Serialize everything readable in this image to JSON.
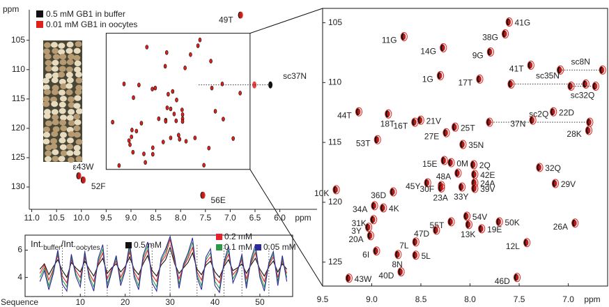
{
  "chart_data": [
    {
      "type": "nmr",
      "ylabel": "ppm",
      "xlabel": "ppm",
      "xlim": [
        11.05,
        5.25
      ],
      "ylim": [
        99.8,
        133.8
      ],
      "y_inverted": true,
      "xticks": [
        {
          "value": 11,
          "label": "11.0"
        },
        10.5,
        {
          "value": 10,
          "label": "10.0"
        },
        9.5,
        {
          "value": 9,
          "label": "9.0"
        },
        8.5,
        {
          "value": 8,
          "label": "8.0"
        },
        7.5,
        {
          "value": 7,
          "label": "7.0"
        },
        6.5,
        {
          "value": 6,
          "label": "6.0"
        }
      ],
      "yticks": [
        105,
        110,
        115,
        120,
        125,
        130
      ],
      "labels": [
        "49T",
        "sc37N",
        "ε43W",
        "52F",
        "56E"
      ],
      "series": [
        {
          "name": "0.5 mM GB1 in buffer",
          "color": "#111111",
          "x": [
            6.8,
            6.19,
            10.06,
            9.97,
            7.56
          ],
          "values": [
            100.7,
            112.6,
            128.1,
            128.8,
            131.4
          ]
        },
        {
          "name": "0.01 mM GB1 in oocytes",
          "color": "#e0201b",
          "x": [
            6.8,
            6.53,
            10.06,
            9.97,
            7.56
          ],
          "values": [
            100.7,
            112.6,
            128.1,
            128.8,
            131.4
          ]
        }
      ]
    },
    {
      "type": "nmr",
      "xlabel": "ppm",
      "xlim": [
        9.5,
        6.6
      ],
      "ylim": [
        103.8,
        127
      ],
      "y_inverted": true,
      "xticks": [
        9.5,
        {
          "value": 9,
          "label": "9.0"
        },
        8.5,
        {
          "value": 8,
          "label": "8.0"
        },
        7.5,
        {
          "value": 7,
          "label": "7.0"
        }
      ],
      "yticks": [
        105,
        110,
        115,
        120,
        125
      ],
      "color": "#111111",
      "contour_color": "#e0201b",
      "labels": [
        "41G",
        "38G",
        "11G",
        "14G",
        "9G",
        "41T",
        "1G",
        "17T",
        "44T",
        "18T",
        "21V",
        "16T",
        "22D",
        "37N",
        "25T",
        "27E",
        "28K",
        "53T",
        "35N",
        "15E",
        "0M",
        "2Q",
        "32Q",
        "48A",
        "42E",
        "45Y",
        "24A",
        "36D",
        "10K",
        "29V",
        "30F",
        "39V",
        "33Y",
        "23A",
        "34A",
        "4K",
        "31K",
        "55T",
        "54V",
        "3Y",
        "13K",
        "47D",
        "50K",
        "26A",
        "20A",
        "19E",
        "7L",
        "12L",
        "6I",
        "8N",
        "5L",
        "43W",
        "40D",
        "46D"
      ],
      "x": [
        7.61,
        7.65,
        8.68,
        8.28,
        7.8,
        7.39,
        8.31,
        7.91,
        9.14,
        8.84,
        8.51,
        8.57,
        7.16,
        7.37,
        8.16,
        8.25,
        6.8,
        8.95,
        8.08,
        8.27,
        8.2,
        7.97,
        7.3,
        8.13,
        7.96,
        8.44,
        7.96,
        8.79,
        9.37,
        7.14,
        8.3,
        7.96,
        8.09,
        8.3,
        8.98,
        8.89,
        8.99,
        8.2,
        8.04,
        9.04,
        8.02,
        8.35,
        7.71,
        6.94,
        9.02,
        7.89,
        8.56,
        7.43,
        8.96,
        8.74,
        8.56,
        9.24,
        8.71,
        7.53
      ],
      "values": [
        104.94,
        105.93,
        106.16,
        107.09,
        107.44,
        108.55,
        109.42,
        109.71,
        112.44,
        112.62,
        113.14,
        113.31,
        112.44,
        113.14,
        113.72,
        114.19,
        114.0,
        114.77,
        115.17,
        116.51,
        116.69,
        116.86,
        117.09,
        117.56,
        117.67,
        118.37,
        118.37,
        119.13,
        118.95,
        118.43,
        118.6,
        118.84,
        118.72,
        118.8,
        120.29,
        120.47,
        121.45,
        121.63,
        121.16,
        122.09,
        121.86,
        122.33,
        121.63,
        121.74,
        122.79,
        122.21,
        123.31,
        123.37,
        124.07,
        124.36,
        124.42,
        126.34,
        125.81,
        126.28
      ],
      "pairs": [
        {
          "label": "sc8N",
          "x": [
            7.09,
            6.66
          ],
          "y": 108.95
        },
        {
          "label": "sc35N",
          "x": [
            7.59,
            6.83
          ],
          "y": 110.12
        },
        {
          "label": "sc32Q",
          "x": [
            6.98,
            6.73
          ],
          "y": 110.3
        },
        {
          "label": "sc2Q",
          "x": [
            7.81,
            6.79
          ],
          "y": 113.31
        }
      ]
    },
    {
      "type": "line",
      "ylabel": [
        "Int.",
        "buffer",
        "/Int.",
        "oocytes"
      ],
      "xlabel": "Sequence",
      "xlim": [
        -2.3,
        57.3
      ],
      "ylim": [
        2.6,
        7.1
      ],
      "xticks": [
        10,
        20,
        30,
        40,
        50
      ],
      "yticks": [
        4,
        6
      ],
      "marker_lines": [
        6,
        11,
        16,
        21,
        26,
        30,
        36,
        42,
        46,
        52
      ],
      "x": [
        1,
        2,
        3,
        4,
        5,
        6,
        7,
        8,
        9,
        10,
        11,
        12,
        13,
        14,
        15,
        16,
        17,
        18,
        19,
        20,
        21,
        22,
        23,
        24,
        25,
        26,
        27,
        28,
        29,
        30,
        31,
        32,
        33,
        34,
        35,
        36,
        37,
        38,
        39,
        40,
        41,
        42,
        43,
        44,
        45,
        46,
        47,
        48,
        49,
        50,
        51,
        52,
        53,
        54,
        55,
        56
      ],
      "series": [
        {
          "name": "0.5 mM",
          "color": "#111111",
          "values": [
            4.6,
            5.0,
            4.2,
            4.8,
            5.3,
            4.5,
            4.0,
            5.1,
            4.7,
            4.4,
            5.2,
            4.6,
            4.1,
            4.9,
            5.4,
            4.3,
            4.7,
            5.0,
            4.4,
            4.8,
            5.5,
            4.6,
            4.2,
            5.0,
            5.6,
            4.5,
            4.1,
            4.9,
            5.3,
            6.2,
            5.0,
            4.3,
            4.7,
            5.1,
            5.8,
            4.6,
            4.2,
            4.9,
            5.2,
            4.4,
            4.0,
            4.8,
            5.3,
            4.5,
            4.7,
            5.0,
            4.3,
            4.9,
            5.4,
            4.6,
            4.1,
            4.8,
            5.2,
            4.4,
            5.0,
            4.6
          ]
        },
        {
          "name": "0.2 mM",
          "color": "#e8202a",
          "values": [
            4.3,
            4.9,
            3.8,
            4.6,
            5.6,
            4.1,
            3.6,
            5.3,
            4.5,
            4.0,
            5.5,
            4.3,
            3.7,
            5.0,
            5.8,
            3.9,
            4.6,
            5.2,
            4.0,
            4.7,
            5.9,
            4.4,
            3.8,
            5.2,
            6.0,
            4.2,
            3.7,
            5.1,
            5.6,
            6.8,
            5.1,
            3.9,
            4.8,
            5.4,
            6.2,
            4.4,
            3.8,
            5.1,
            5.5,
            4.0,
            3.6,
            4.9,
            5.7,
            4.2,
            4.6,
            5.3,
            3.9,
            5.0,
            5.8,
            4.4,
            3.7,
            4.9,
            5.5,
            4.0,
            5.2,
            4.3
          ]
        },
        {
          "name": "0.1 mM",
          "color": "#2e9a48",
          "values": [
            4.0,
            4.7,
            3.4,
            4.5,
            5.8,
            3.8,
            3.3,
            5.5,
            4.3,
            3.6,
            5.7,
            4.1,
            3.3,
            5.2,
            6.1,
            3.5,
            4.5,
            5.4,
            3.7,
            4.6,
            6.2,
            4.2,
            3.4,
            5.4,
            6.3,
            3.9,
            3.3,
            5.2,
            5.9,
            7.0,
            5.3,
            3.5,
            4.9,
            5.6,
            6.6,
            4.2,
            3.4,
            5.3,
            5.8,
            3.7,
            3.2,
            5.0,
            6.0,
            3.9,
            4.5,
            5.5,
            3.5,
            5.1,
            6.1,
            4.2,
            3.3,
            5.0,
            5.7,
            3.7,
            5.4,
            4.0
          ]
        },
        {
          "name": "0.05 mM",
          "color": "#2a2a9a",
          "values": [
            3.7,
            4.5,
            3.1,
            4.3,
            6.0,
            3.5,
            3.0,
            5.7,
            4.1,
            3.3,
            5.9,
            3.9,
            3.0,
            5.4,
            6.4,
            3.2,
            4.4,
            5.6,
            3.4,
            4.5,
            6.5,
            4.0,
            3.1,
            5.6,
            6.6,
            3.6,
            3.0,
            5.4,
            6.1,
            7.0,
            5.5,
            3.2,
            5.0,
            5.8,
            6.9,
            4.0,
            3.1,
            5.5,
            6.1,
            3.4,
            2.9,
            5.1,
            6.3,
            3.6,
            4.4,
            5.7,
            3.2,
            5.3,
            6.4,
            4.0,
            3.0,
            5.1,
            5.9,
            3.4,
            5.6,
            3.7
          ]
        }
      ]
    }
  ]
}
